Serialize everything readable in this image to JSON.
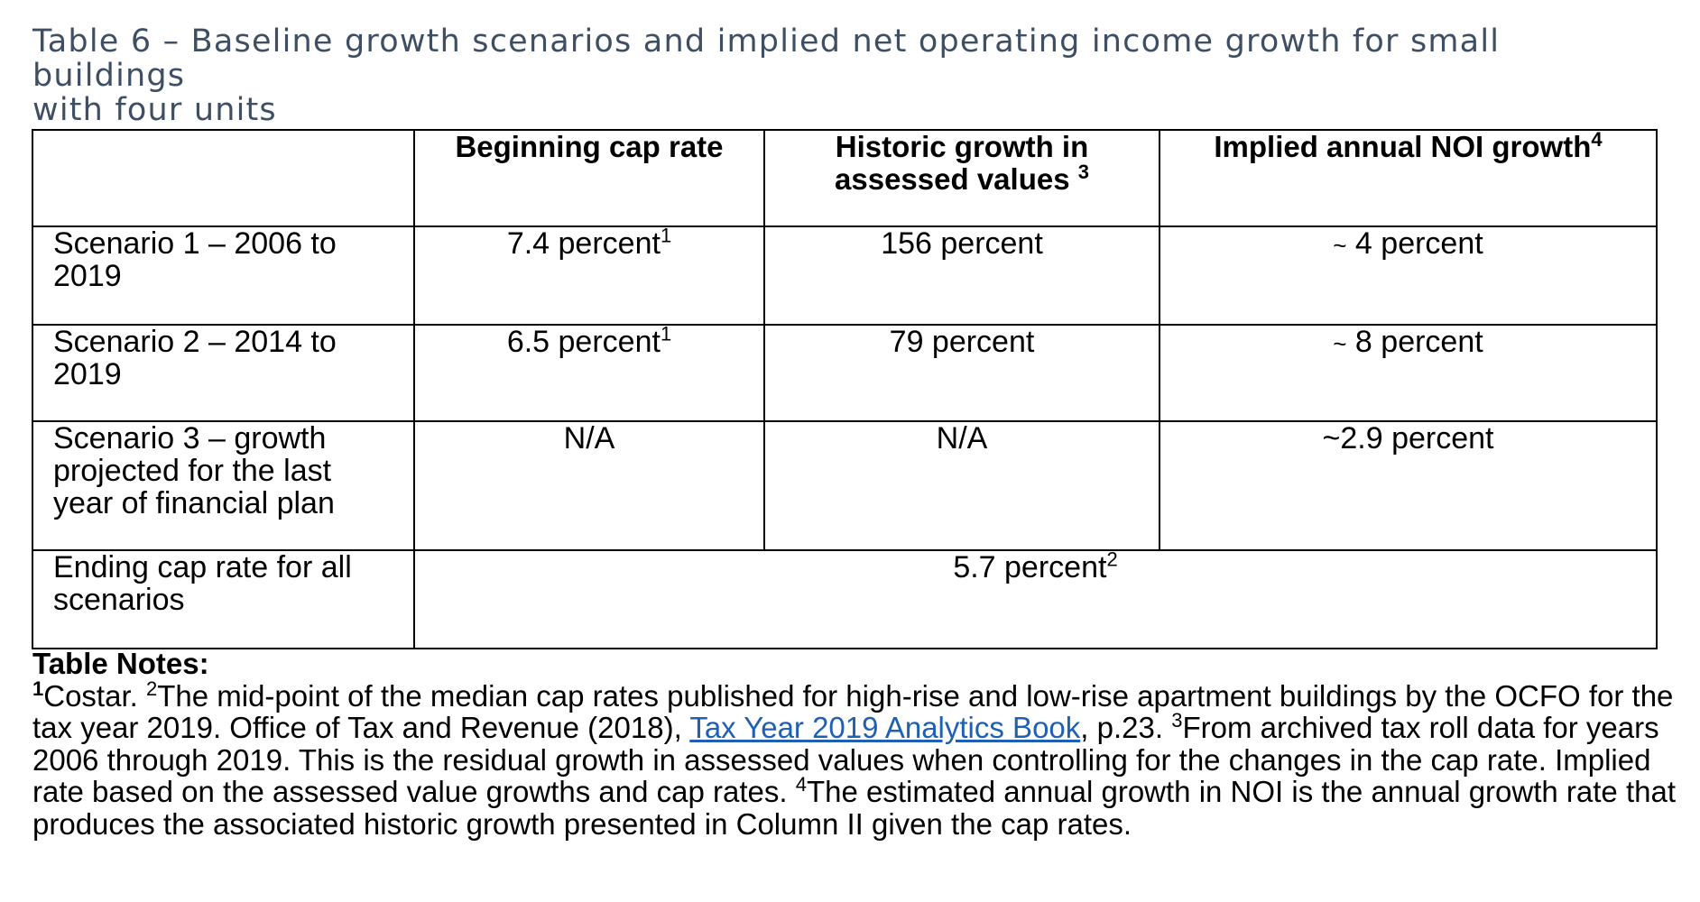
{
  "caption": {
    "line1": "Table 6 – Baseline growth scenarios and implied net operating income growth for small buildings",
    "line2": "with four units"
  },
  "table": {
    "headers": {
      "blank": "",
      "col1": "Beginning cap rate",
      "col2_line1": "Historic growth in",
      "col2_line2": "assessed values",
      "col2_sup": "3",
      "col3": "Implied annual NOI growth",
      "col3_sup": "4"
    },
    "rows": [
      {
        "label_line1": "Scenario 1 – 2006 to",
        "label_line2": "2019",
        "cap_rate": "7.4 percent",
        "cap_rate_sup": "1",
        "historic_growth": "156 percent",
        "noi_tilde": "~",
        "noi_growth": " 4 percent"
      },
      {
        "label_line1": "Scenario 2 – 2014 to",
        "label_line2": "2019",
        "cap_rate": "6.5 percent",
        "cap_rate_sup": "1",
        "historic_growth": "79 percent",
        "noi_tilde": "~",
        "noi_growth": " 8 percent"
      },
      {
        "label_line1": "Scenario 3 – growth",
        "label_line2": "projected for the last",
        "label_line3": "year of financial plan",
        "cap_rate": "N/A",
        "historic_growth": "N/A",
        "noi_growth": "~2.9 percent"
      }
    ],
    "ending": {
      "label_line1": "Ending cap rate for all",
      "label_line2": "scenarios",
      "value": "5.7 percent",
      "value_sup": "2"
    }
  },
  "notes": {
    "title": "Table Notes:",
    "sup1": "1",
    "note1": "Costar. ",
    "sup2": "2",
    "note2a": "The mid-point of the median cap rates published for high-rise and low-rise apartment buildings by the OCFO for the tax year 2019. Office of Tax and Revenue (2018), ",
    "link_text": "Tax Year 2019 Analytics Book",
    "note2b": ", p.23. ",
    "sup3": "3",
    "note3": "From archived tax roll data for years 2006 through 2019. This is the residual growth in assessed values when controlling for the changes in the cap rate. Implied rate based on the assessed value growths and cap rates. ",
    "sup4": "4",
    "note4": "The estimated annual growth in NOI is the annual growth rate that produces the associated historic growth presented in Column II given the cap rates."
  },
  "colors": {
    "caption": "#3f4f63",
    "link": "#1f5fb4",
    "border": "#000000"
  }
}
